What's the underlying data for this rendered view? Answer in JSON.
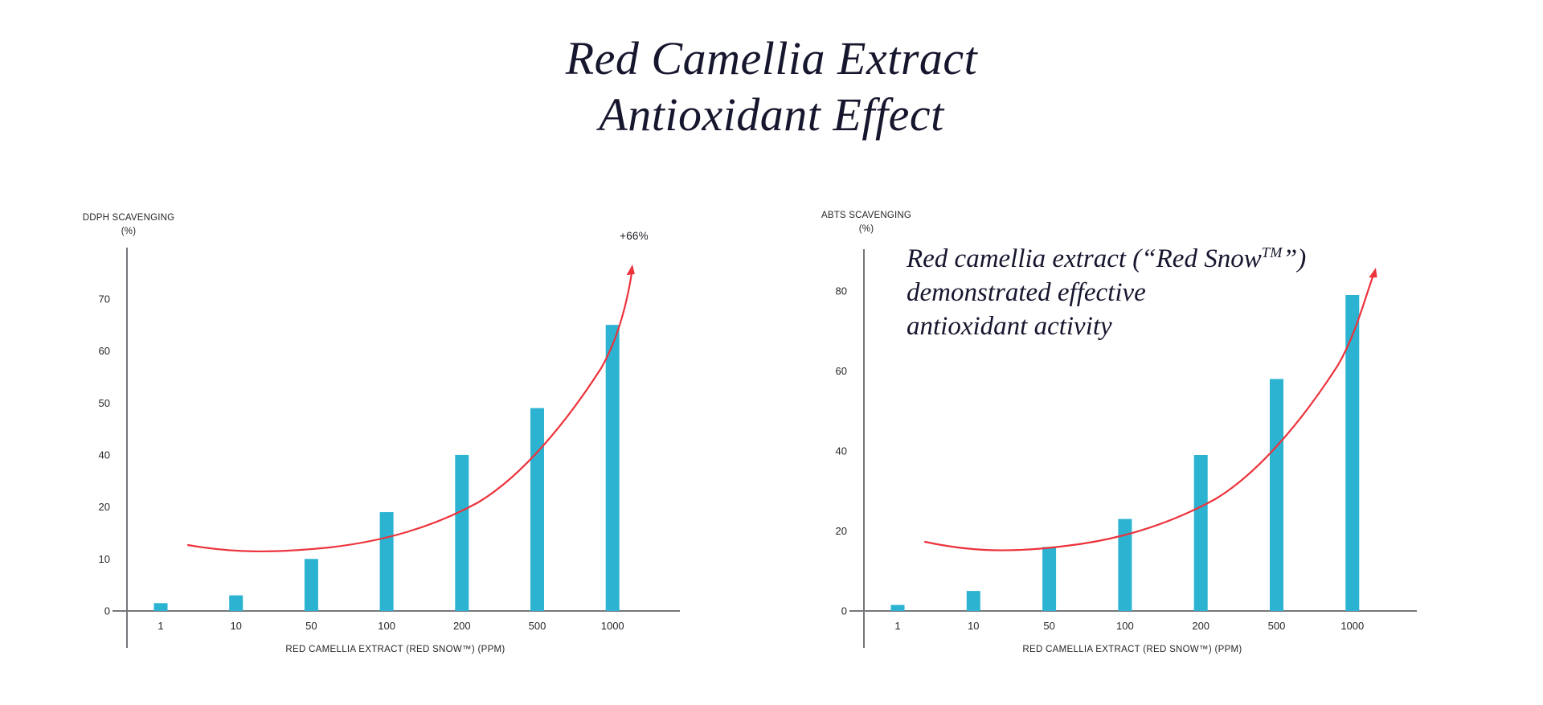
{
  "title": {
    "line1": "Red Camellia Extract",
    "line2": "Antioxidant Effect"
  },
  "colors": {
    "bar": "#2bb3d1",
    "trend": "#ec333c",
    "axis": "#75767a",
    "text": "#26262c"
  },
  "note": {
    "line1_before": "Red camellia extract (“Red Snow",
    "line1_tm": "TM",
    "line1_after": "”)",
    "line2": "demonstrated effective",
    "line3": "antioxidant activity"
  },
  "chart_data": [
    {
      "type": "bar",
      "ylabel_line1": "DDPH SCAVENGING",
      "ylabel_line2": "(%)",
      "xlabel": "RED CAMELLIA EXTRACT (RED SNOW™) (PPM)",
      "categories": [
        "1",
        "10",
        "50",
        "100",
        "200",
        "500",
        "1000"
      ],
      "values": [
        1.5,
        3,
        10,
        19,
        40,
        49,
        65
      ],
      "yticks": [
        "0",
        "10",
        "20",
        "40",
        "50",
        "60",
        "70"
      ],
      "ylim": [
        0,
        75
      ],
      "grid": false,
      "legend": false,
      "annotation": "+66%",
      "overlay": "red exponential trend curve with upward arrow"
    },
    {
      "type": "bar",
      "ylabel_line1": "ABTS SCAVENGING",
      "ylabel_line2": "(%)",
      "xlabel": "RED CAMELLIA EXTRACT (RED SNOW™) (PPM)",
      "categories": [
        "1",
        "10",
        "50",
        "100",
        "200",
        "500",
        "1000"
      ],
      "values": [
        1.5,
        5,
        16,
        23,
        39,
        58,
        79
      ],
      "yticks": [
        "0",
        "20",
        "40",
        "60",
        "80"
      ],
      "ylim": [
        0,
        85
      ],
      "grid": false,
      "legend": false,
      "annotation": "",
      "overlay": "red exponential trend curve with upward arrow"
    }
  ]
}
